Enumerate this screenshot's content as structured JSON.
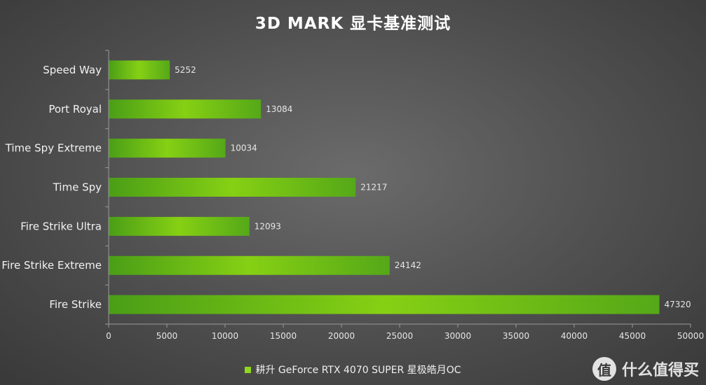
{
  "chart_data": {
    "type": "bar",
    "orientation": "horizontal",
    "title": "3D MARK 显卡基准测试",
    "categories": [
      "Speed Way",
      "Port Royal",
      "Time Spy Extreme",
      "Time Spy",
      "Fire Strike Ultra",
      "Fire Strike Extreme",
      "Fire Strike"
    ],
    "series": [
      {
        "name": "耕升 GeForce RTX 4070 SUPER 星极皓月OC",
        "values": [
          5252,
          13084,
          10034,
          21217,
          12093,
          24142,
          47320
        ]
      }
    ],
    "xlim": [
      0,
      50000
    ],
    "xticks": [
      0,
      5000,
      10000,
      15000,
      20000,
      25000,
      30000,
      35000,
      40000,
      45000,
      50000
    ],
    "xlabel": "",
    "ylabel": "",
    "grid": false,
    "legend": "bottom-center",
    "colors": {
      "bar_dark": "#4a9e16",
      "bar_light": "#8fd81a",
      "background": "#4f4f4f"
    }
  },
  "watermark": {
    "logo_char": "值",
    "text": "什么值得买"
  }
}
